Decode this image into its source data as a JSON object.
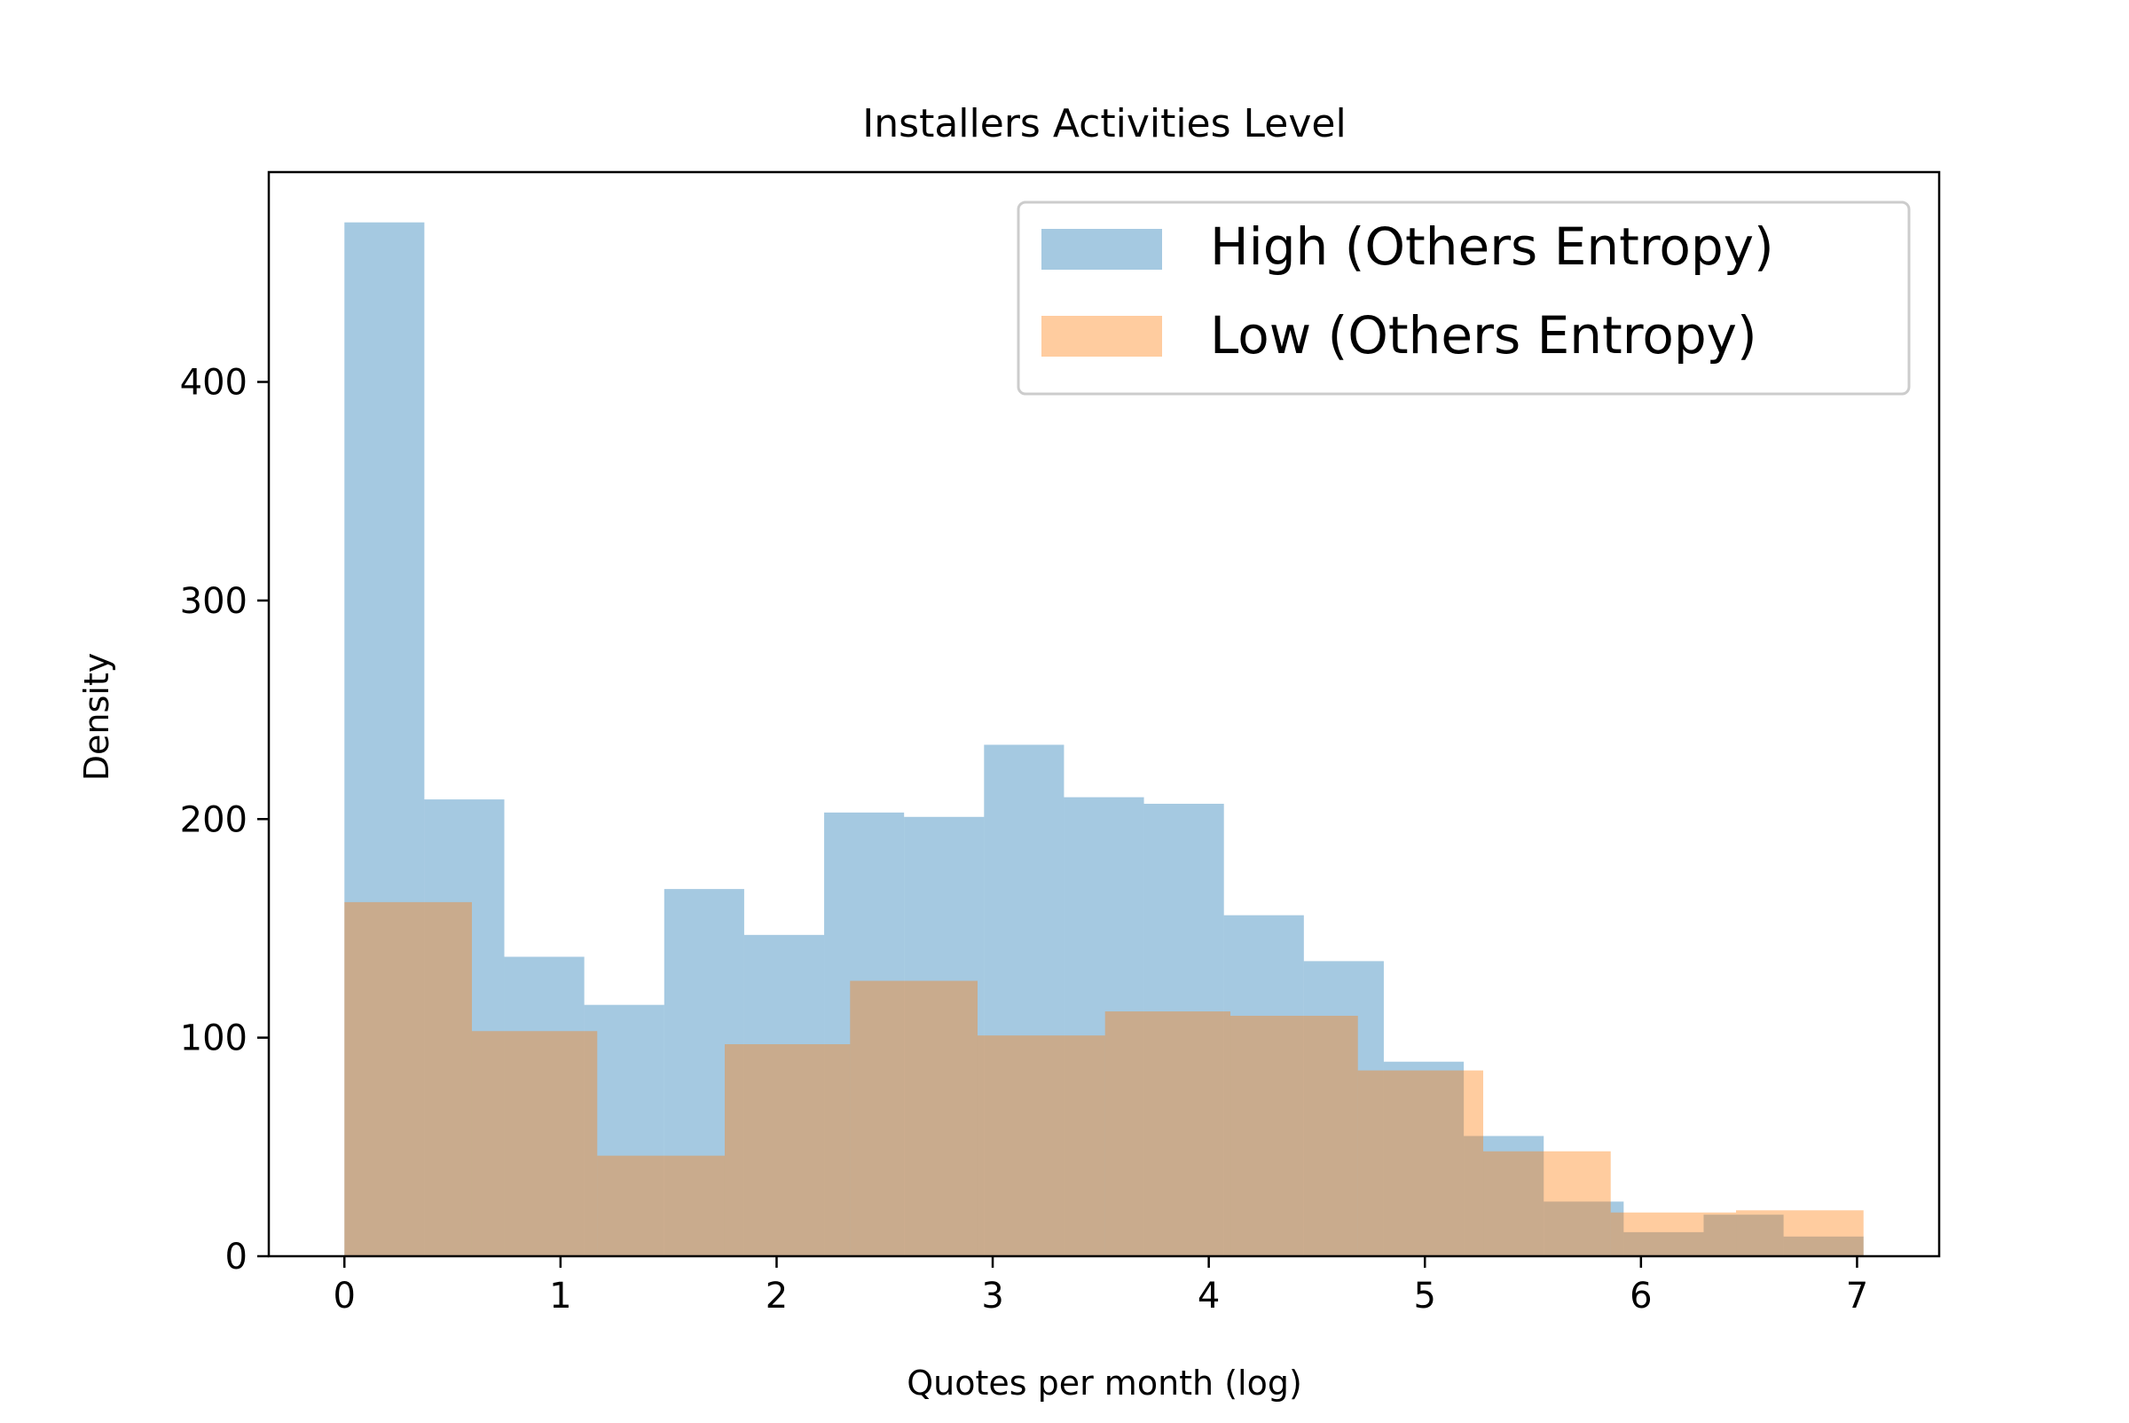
{
  "chart_data": {
    "type": "bar",
    "title": "Installers Activities Level",
    "xlabel": "Quotes per month (log)",
    "ylabel": "Density",
    "xlim": [
      -0.35,
      7.38
    ],
    "ylim": [
      0,
      496
    ],
    "xticks": [
      0,
      1,
      2,
      3,
      4,
      5,
      6,
      7
    ],
    "yticks": [
      0,
      100,
      200,
      300,
      400
    ],
    "grid": false,
    "legend_position": "top-right",
    "series": [
      {
        "name": "High (Others Entropy)",
        "color": "#1f77b4",
        "opacity": 0.4,
        "bins": [
          {
            "x0": 0.0,
            "x1": 0.37,
            "value": 473
          },
          {
            "x0": 0.37,
            "x1": 0.74,
            "value": 209
          },
          {
            "x0": 0.74,
            "x1": 1.11,
            "value": 137
          },
          {
            "x0": 1.11,
            "x1": 1.48,
            "value": 115
          },
          {
            "x0": 1.48,
            "x1": 1.85,
            "value": 168
          },
          {
            "x0": 1.85,
            "x1": 2.22,
            "value": 147
          },
          {
            "x0": 2.22,
            "x1": 2.59,
            "value": 203
          },
          {
            "x0": 2.59,
            "x1": 2.96,
            "value": 201
          },
          {
            "x0": 2.96,
            "x1": 3.33,
            "value": 234
          },
          {
            "x0": 3.33,
            "x1": 3.7,
            "value": 210
          },
          {
            "x0": 3.7,
            "x1": 4.07,
            "value": 207
          },
          {
            "x0": 4.07,
            "x1": 4.44,
            "value": 156
          },
          {
            "x0": 4.44,
            "x1": 4.81,
            "value": 135
          },
          {
            "x0": 4.81,
            "x1": 5.18,
            "value": 89
          },
          {
            "x0": 5.18,
            "x1": 5.55,
            "value": 55
          },
          {
            "x0": 5.55,
            "x1": 5.92,
            "value": 25
          },
          {
            "x0": 5.92,
            "x1": 6.29,
            "value": 11
          },
          {
            "x0": 6.29,
            "x1": 6.66,
            "value": 19
          },
          {
            "x0": 6.66,
            "x1": 7.03,
            "value": 9
          }
        ]
      },
      {
        "name": "Low (Others Entropy)",
        "color": "#ff7f0e",
        "opacity": 0.4,
        "bins": [
          {
            "x0": 0.0,
            "x1": 0.59,
            "value": 162
          },
          {
            "x0": 0.59,
            "x1": 1.17,
            "value": 103
          },
          {
            "x0": 1.17,
            "x1": 1.76,
            "value": 46
          },
          {
            "x0": 1.76,
            "x1": 2.34,
            "value": 97
          },
          {
            "x0": 2.34,
            "x1": 2.93,
            "value": 126
          },
          {
            "x0": 2.93,
            "x1": 3.52,
            "value": 101
          },
          {
            "x0": 3.52,
            "x1": 4.1,
            "value": 112
          },
          {
            "x0": 4.1,
            "x1": 4.69,
            "value": 110
          },
          {
            "x0": 4.69,
            "x1": 5.27,
            "value": 85
          },
          {
            "x0": 5.27,
            "x1": 5.86,
            "value": 48
          },
          {
            "x0": 5.86,
            "x1": 6.44,
            "value": 20
          },
          {
            "x0": 6.44,
            "x1": 7.03,
            "value": 21
          }
        ]
      }
    ]
  }
}
